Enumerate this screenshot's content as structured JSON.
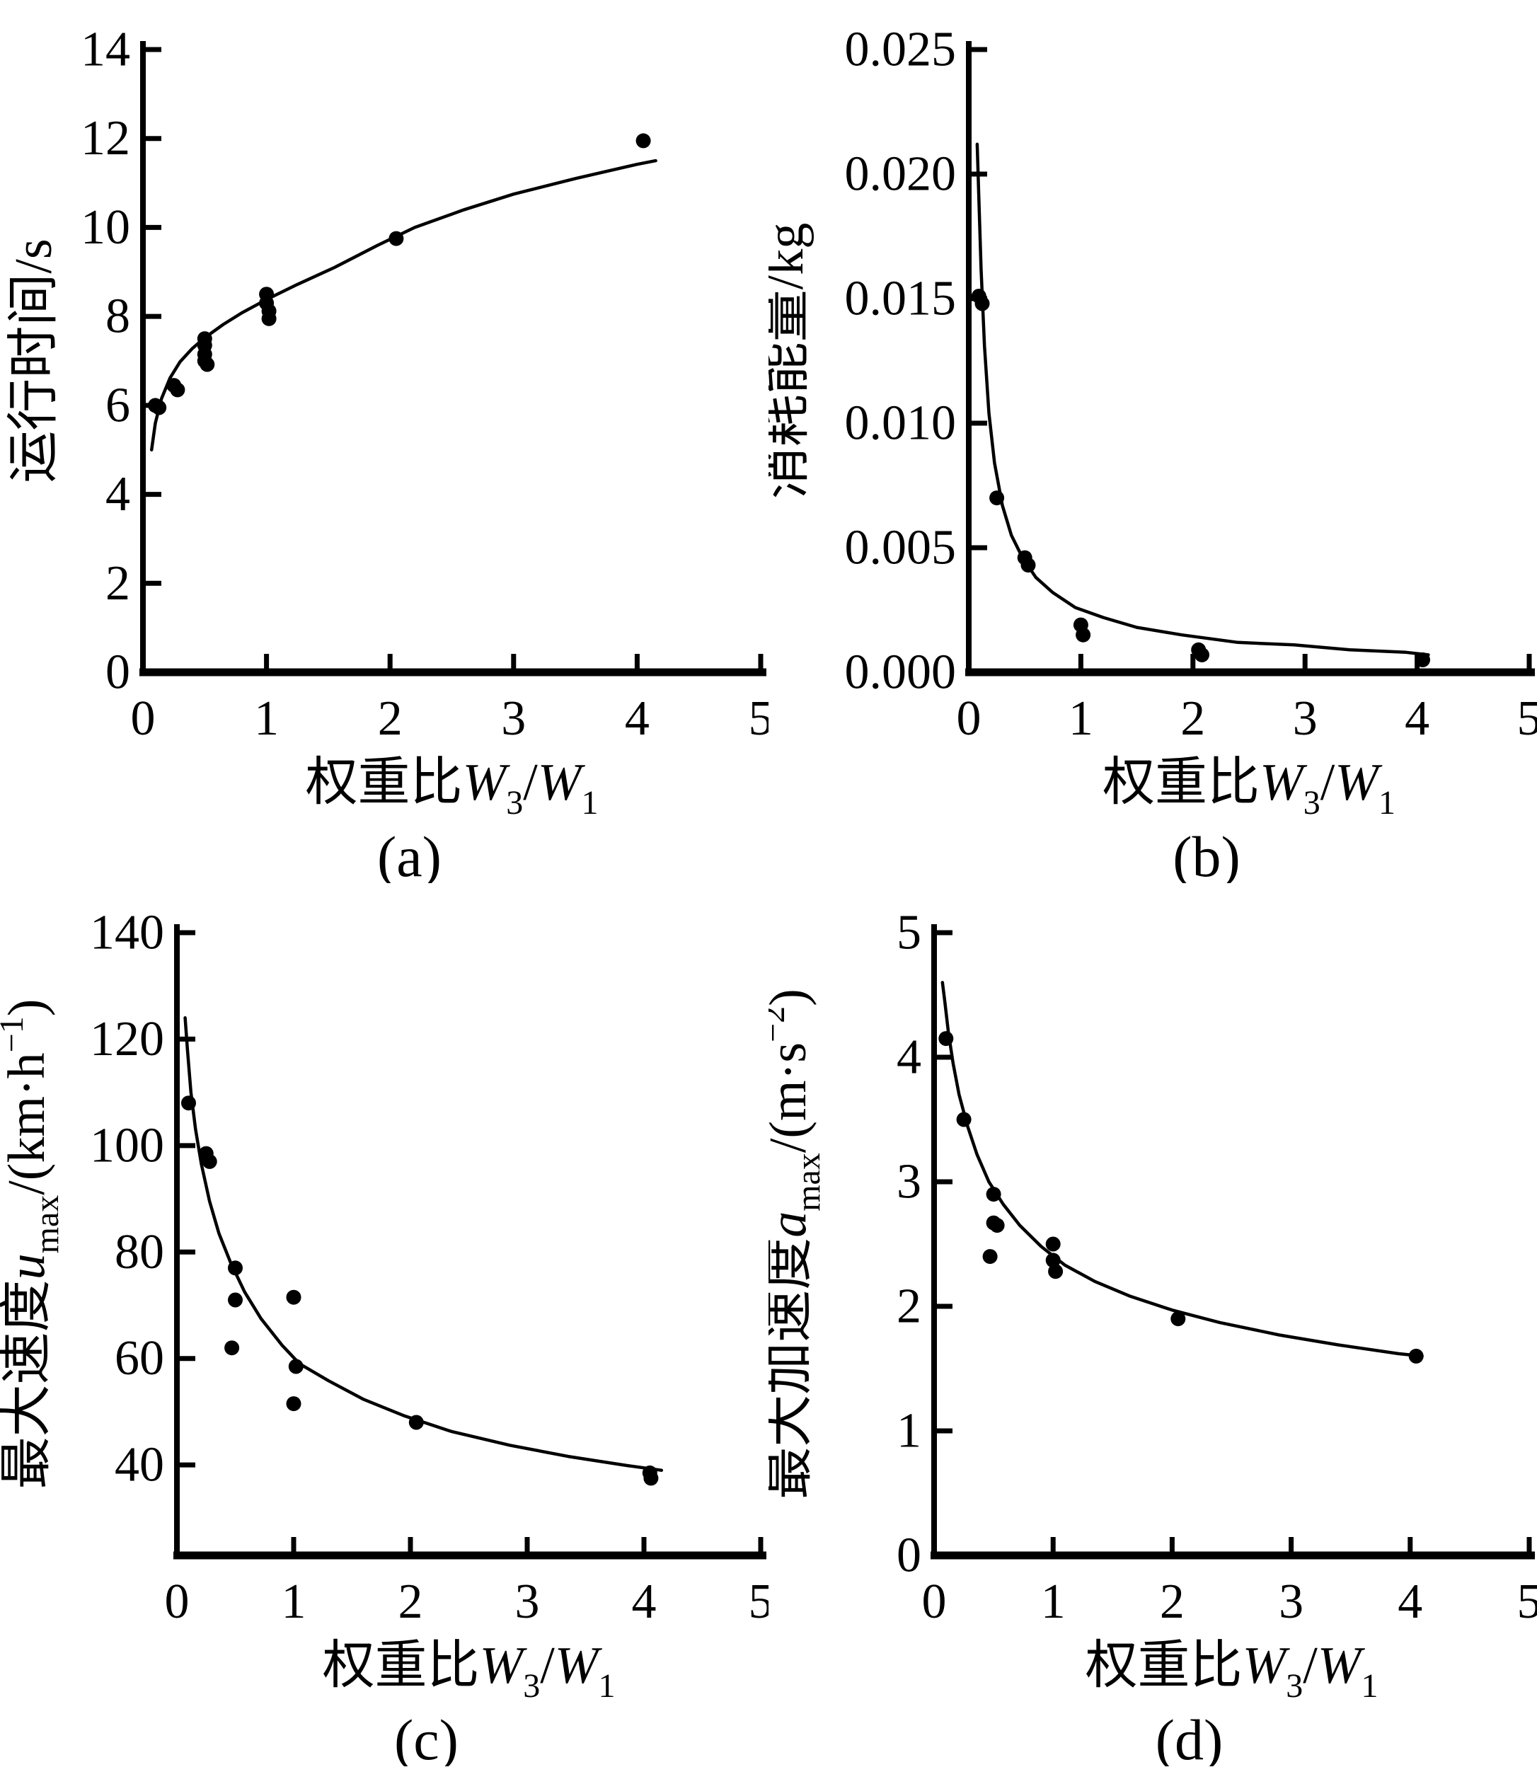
{
  "figure": {
    "background": "#ffffff",
    "ink_color": "#000000",
    "panels_order": [
      "a",
      "b",
      "c",
      "d"
    ]
  },
  "chart_data": [
    {
      "type": "scatter",
      "panel_caption": "(a)",
      "title": "",
      "xlabel": "权重比W3/W1",
      "ylabel": "运行时间/s",
      "xlabel_parts": [
        {
          "t": "权重比"
        },
        {
          "t": "W",
          "i": true
        },
        {
          "t": "3",
          "sub": true
        },
        {
          "t": "/"
        },
        {
          "t": "W",
          "i": true
        },
        {
          "t": "1",
          "sub": true
        }
      ],
      "ylabel_parts": [
        {
          "t": "运行时间/s"
        }
      ],
      "xlim": [
        0,
        5
      ],
      "ylim": [
        0,
        14
      ],
      "xticks": [
        0,
        1,
        2,
        3,
        4,
        5
      ],
      "xtick_labels": [
        "0",
        "1",
        "2",
        "3",
        "4",
        "5"
      ],
      "yticks": [
        0,
        2,
        4,
        6,
        8,
        10,
        12,
        14
      ],
      "ytick_labels": [
        "0",
        "2",
        "4",
        "6",
        "8",
        "10",
        "12",
        "14"
      ],
      "grid": false,
      "legend": null,
      "marker": "filled-circle",
      "scatter_points": [
        [
          0.1,
          6.0
        ],
        [
          0.13,
          5.95
        ],
        [
          0.25,
          6.45
        ],
        [
          0.28,
          6.35
        ],
        [
          0.5,
          7.5
        ],
        [
          0.5,
          7.35
        ],
        [
          0.5,
          7.15
        ],
        [
          0.5,
          7.0
        ],
        [
          0.52,
          6.92
        ],
        [
          1.0,
          8.5
        ],
        [
          1.0,
          8.3
        ],
        [
          1.02,
          8.12
        ],
        [
          1.02,
          7.95
        ],
        [
          2.05,
          9.75
        ],
        [
          4.05,
          11.95
        ]
      ],
      "fit_curve": [
        [
          0.07,
          5.0
        ],
        [
          0.1,
          5.6
        ],
        [
          0.15,
          6.15
        ],
        [
          0.22,
          6.62
        ],
        [
          0.3,
          6.98
        ],
        [
          0.4,
          7.28
        ],
        [
          0.5,
          7.52
        ],
        [
          0.65,
          7.82
        ],
        [
          0.8,
          8.08
        ],
        [
          1.0,
          8.38
        ],
        [
          1.25,
          8.72
        ],
        [
          1.55,
          9.1
        ],
        [
          1.9,
          9.6
        ],
        [
          2.2,
          10.0
        ],
        [
          2.6,
          10.4
        ],
        [
          3.0,
          10.75
        ],
        [
          3.5,
          11.1
        ],
        [
          4.0,
          11.42
        ],
        [
          4.15,
          11.5
        ]
      ],
      "layout": {
        "margin_left": 202,
        "ylabel_x": 72
      }
    },
    {
      "type": "scatter",
      "panel_caption": "(b)",
      "title": "",
      "xlabel": "权重比W3/W1",
      "ylabel": "消耗能量/kg",
      "xlabel_parts": [
        {
          "t": "权重比"
        },
        {
          "t": "W",
          "i": true
        },
        {
          "t": "3",
          "sub": true
        },
        {
          "t": "/"
        },
        {
          "t": "W",
          "i": true
        },
        {
          "t": "1",
          "sub": true
        }
      ],
      "ylabel_parts": [
        {
          "t": "消耗能量/kg"
        }
      ],
      "xlim": [
        0,
        5
      ],
      "ylim": [
        0,
        0.025
      ],
      "xticks": [
        0,
        1,
        2,
        3,
        4,
        5
      ],
      "xtick_labels": [
        "0",
        "1",
        "2",
        "3",
        "4",
        "5"
      ],
      "yticks": [
        0,
        0.005,
        0.01,
        0.015,
        0.02,
        0.025
      ],
      "ytick_labels": [
        "0.000",
        "0.005",
        "0.010",
        "0.015",
        "0.020",
        "0.025"
      ],
      "grid": false,
      "legend": null,
      "marker": "filled-circle",
      "scatter_points": [
        [
          0.09,
          0.0151
        ],
        [
          0.12,
          0.0148
        ],
        [
          0.25,
          0.007
        ],
        [
          0.5,
          0.0046
        ],
        [
          0.53,
          0.0043
        ],
        [
          1.0,
          0.0019
        ],
        [
          1.02,
          0.0015
        ],
        [
          2.05,
          0.0009
        ],
        [
          2.08,
          0.0007
        ],
        [
          4.05,
          0.0005
        ]
      ],
      "fit_curve": [
        [
          0.075,
          0.0212
        ],
        [
          0.09,
          0.019
        ],
        [
          0.11,
          0.0162
        ],
        [
          0.14,
          0.0131
        ],
        [
          0.18,
          0.0104
        ],
        [
          0.23,
          0.0084
        ],
        [
          0.3,
          0.0067
        ],
        [
          0.38,
          0.0055
        ],
        [
          0.48,
          0.0046
        ],
        [
          0.6,
          0.0038
        ],
        [
          0.75,
          0.0032
        ],
        [
          0.95,
          0.0026
        ],
        [
          1.2,
          0.0022
        ],
        [
          1.5,
          0.0018
        ],
        [
          1.9,
          0.0015
        ],
        [
          2.4,
          0.0012
        ],
        [
          2.9,
          0.0011
        ],
        [
          3.4,
          0.0009
        ],
        [
          3.9,
          0.0008
        ],
        [
          4.1,
          0.0007
        ]
      ],
      "layout": {
        "margin_left": 283,
        "ylabel_x": 48
      }
    },
    {
      "type": "scatter",
      "panel_caption": "(c)",
      "title": "",
      "xlabel": "权重比W3/W1",
      "ylabel": "最大速度umax/(km·h-1)",
      "xlabel_parts": [
        {
          "t": "权重比"
        },
        {
          "t": "W",
          "i": true
        },
        {
          "t": "3",
          "sub": true
        },
        {
          "t": "/"
        },
        {
          "t": "W",
          "i": true
        },
        {
          "t": "1",
          "sub": true
        }
      ],
      "ylabel_parts": [
        {
          "t": "最大速度"
        },
        {
          "t": "u",
          "i": true
        },
        {
          "t": "max",
          "sub": true
        },
        {
          "t": "/(km·h"
        },
        {
          "t": "−1",
          "sup": true
        },
        {
          "t": ")"
        }
      ],
      "xlim": [
        0,
        5
      ],
      "ylim": [
        23,
        140
      ],
      "xticks": [
        0,
        1,
        2,
        3,
        4,
        5
      ],
      "xtick_labels": [
        "0",
        "1",
        "2",
        "3",
        "4",
        "5"
      ],
      "yticks": [
        40,
        60,
        80,
        100,
        120,
        140
      ],
      "ytick_labels": [
        "40",
        "60",
        "80",
        "100",
        "120",
        "140"
      ],
      "grid": false,
      "legend": null,
      "marker": "filled-circle",
      "scatter_points": [
        [
          0.1,
          108.0
        ],
        [
          0.25,
          98.5
        ],
        [
          0.28,
          97.0
        ],
        [
          0.5,
          77.0
        ],
        [
          0.5,
          71.0
        ],
        [
          0.47,
          62.0
        ],
        [
          1.0,
          71.5
        ],
        [
          1.02,
          58.5
        ],
        [
          1.0,
          51.5
        ],
        [
          2.05,
          48.0
        ],
        [
          4.05,
          38.5
        ],
        [
          4.06,
          37.5
        ]
      ],
      "fit_curve": [
        [
          0.07,
          124.0
        ],
        [
          0.09,
          118.0
        ],
        [
          0.12,
          110.0
        ],
        [
          0.16,
          103.0
        ],
        [
          0.21,
          96.5
        ],
        [
          0.28,
          89.5
        ],
        [
          0.36,
          83.5
        ],
        [
          0.46,
          78.0
        ],
        [
          0.58,
          72.5
        ],
        [
          0.72,
          67.5
        ],
        [
          0.9,
          62.5
        ],
        [
          1.05,
          59.0
        ],
        [
          1.3,
          55.8
        ],
        [
          1.6,
          52.3
        ],
        [
          1.95,
          49.2
        ],
        [
          2.35,
          46.3
        ],
        [
          2.85,
          43.7
        ],
        [
          3.35,
          41.6
        ],
        [
          3.85,
          39.9
        ],
        [
          4.15,
          39.0
        ]
      ],
      "layout": {
        "margin_left": 250,
        "ylabel_x": 62
      }
    },
    {
      "type": "scatter",
      "panel_caption": "(d)",
      "title": "",
      "xlabel": "权重比W3/W1",
      "ylabel": "最大加速度amax/(m·s-2)",
      "xlabel_parts": [
        {
          "t": "权重比"
        },
        {
          "t": "W",
          "i": true
        },
        {
          "t": "3",
          "sub": true
        },
        {
          "t": "/"
        },
        {
          "t": "W",
          "i": true
        },
        {
          "t": "1",
          "sub": true
        }
      ],
      "ylabel_parts": [
        {
          "t": "最大加速度"
        },
        {
          "t": "a",
          "i": true
        },
        {
          "t": "max",
          "sub": true
        },
        {
          "t": "/(m·s"
        },
        {
          "t": "−2",
          "sup": true
        },
        {
          "t": ")"
        }
      ],
      "xlim": [
        0,
        5
      ],
      "ylim": [
        0,
        5
      ],
      "xticks": [
        0,
        1,
        2,
        3,
        4,
        5
      ],
      "xtick_labels": [
        "0",
        "1",
        "2",
        "3",
        "4",
        "5"
      ],
      "yticks": [
        0,
        1,
        2,
        3,
        4,
        5
      ],
      "ytick_labels": [
        "0",
        "1",
        "2",
        "3",
        "4",
        "5"
      ],
      "grid": false,
      "legend": null,
      "marker": "filled-circle",
      "scatter_points": [
        [
          0.1,
          4.15
        ],
        [
          0.25,
          3.5
        ],
        [
          0.5,
          2.9
        ],
        [
          0.5,
          2.67
        ],
        [
          0.53,
          2.65
        ],
        [
          0.47,
          2.4
        ],
        [
          1.0,
          2.5
        ],
        [
          1.0,
          2.37
        ],
        [
          1.02,
          2.28
        ],
        [
          2.05,
          1.9
        ],
        [
          4.05,
          1.6
        ]
      ],
      "fit_curve": [
        [
          0.07,
          4.6
        ],
        [
          0.09,
          4.45
        ],
        [
          0.12,
          4.2
        ],
        [
          0.16,
          3.95
        ],
        [
          0.21,
          3.7
        ],
        [
          0.28,
          3.45
        ],
        [
          0.36,
          3.22
        ],
        [
          0.46,
          3.0
        ],
        [
          0.58,
          2.82
        ],
        [
          0.72,
          2.65
        ],
        [
          0.9,
          2.48
        ],
        [
          1.1,
          2.33
        ],
        [
          1.35,
          2.2
        ],
        [
          1.65,
          2.08
        ],
        [
          2.0,
          1.97
        ],
        [
          2.4,
          1.87
        ],
        [
          2.9,
          1.77
        ],
        [
          3.4,
          1.69
        ],
        [
          3.9,
          1.62
        ],
        [
          4.1,
          1.6
        ]
      ],
      "layout": {
        "margin_left": 234,
        "ylabel_x": 52
      }
    }
  ]
}
